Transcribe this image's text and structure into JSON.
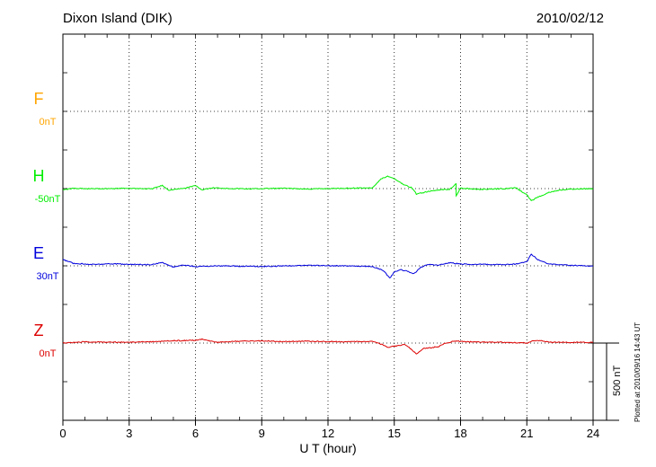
{
  "header": {
    "station": "Dixon Island (DIK)",
    "date": "2010/02/12",
    "plotted": "Plotted at 2010/09/16 14:43 UT"
  },
  "colors": {
    "F": "#ffa500",
    "H": "#00ee00",
    "E": "#0000dd",
    "Z": "#dd0000",
    "axis": "#000000"
  },
  "chart_data": {
    "type": "line",
    "xlabel": "U T (hour)",
    "xlim": [
      0,
      24
    ],
    "xticks": [
      0,
      3,
      6,
      9,
      12,
      15,
      18,
      21,
      24
    ],
    "scale_bar": "500 nT",
    "series": [
      {
        "name": "F",
        "baseline": "0nT",
        "points": []
      },
      {
        "name": "H",
        "baseline": "-50nT",
        "points": [
          [
            0,
            7
          ],
          [
            0.5,
            -2
          ],
          [
            1,
            1
          ],
          [
            2,
            0
          ],
          [
            3,
            -2
          ],
          [
            4,
            2
          ],
          [
            4.5,
            -20
          ],
          [
            4.8,
            10
          ],
          [
            5.5,
            -2
          ],
          [
            6,
            -20
          ],
          [
            6.3,
            8
          ],
          [
            6.8,
            -5
          ],
          [
            7.5,
            -1
          ],
          [
            8.5,
            2
          ],
          [
            9,
            0
          ],
          [
            10,
            -2
          ],
          [
            11,
            3
          ],
          [
            12,
            0
          ],
          [
            13,
            -3
          ],
          [
            14,
            -5
          ],
          [
            14.4,
            -62
          ],
          [
            14.7,
            -80
          ],
          [
            15,
            -65
          ],
          [
            15.4,
            -28
          ],
          [
            15.8,
            -5
          ],
          [
            16,
            35
          ],
          [
            16.5,
            20
          ],
          [
            17,
            8
          ],
          [
            17.5,
            4
          ],
          [
            17.8,
            -30
          ],
          [
            17.8,
            45
          ],
          [
            18,
            -2
          ],
          [
            19,
            5
          ],
          [
            20,
            0
          ],
          [
            20.5,
            -5
          ],
          [
            21,
            40
          ],
          [
            21.2,
            78
          ],
          [
            21.5,
            55
          ],
          [
            22,
            25
          ],
          [
            22.5,
            10
          ],
          [
            23,
            4
          ],
          [
            24,
            0
          ]
        ]
      },
      {
        "name": "E",
        "baseline": "30nT",
        "points": [
          [
            0,
            -40
          ],
          [
            0.5,
            -15
          ],
          [
            1,
            -12
          ],
          [
            1.5,
            -8
          ],
          [
            2,
            -14
          ],
          [
            3,
            -10
          ],
          [
            4,
            -8
          ],
          [
            4.5,
            -20
          ],
          [
            5,
            8
          ],
          [
            5.5,
            -5
          ],
          [
            6,
            5
          ],
          [
            7,
            0
          ],
          [
            8,
            2
          ],
          [
            9,
            4
          ],
          [
            10,
            1
          ],
          [
            11,
            -3
          ],
          [
            12,
            -1
          ],
          [
            13,
            1
          ],
          [
            14,
            4
          ],
          [
            14.5,
            30
          ],
          [
            14.8,
            80
          ],
          [
            15,
            40
          ],
          [
            15.3,
            25
          ],
          [
            15.6,
            35
          ],
          [
            15.9,
            50
          ],
          [
            16.2,
            10
          ],
          [
            16.5,
            -10
          ],
          [
            17,
            -5
          ],
          [
            17.5,
            -20
          ],
          [
            18,
            -12
          ],
          [
            18.5,
            -8
          ],
          [
            19,
            -10
          ],
          [
            20,
            -8
          ],
          [
            20.5,
            -12
          ],
          [
            21,
            -25
          ],
          [
            21.2,
            -75
          ],
          [
            21.5,
            -40
          ],
          [
            22,
            -12
          ],
          [
            22.5,
            -8
          ],
          [
            23,
            -3
          ],
          [
            24,
            2
          ]
        ]
      },
      {
        "name": "Z",
        "baseline": "0nT",
        "points": [
          [
            0,
            0
          ],
          [
            1,
            -8
          ],
          [
            2,
            -5
          ],
          [
            3,
            -6
          ],
          [
            4,
            -8
          ],
          [
            5,
            -15
          ],
          [
            6,
            -18
          ],
          [
            6.3,
            -25
          ],
          [
            6.7,
            -12
          ],
          [
            7,
            -5
          ],
          [
            8,
            -12
          ],
          [
            9,
            -14
          ],
          [
            10,
            -10
          ],
          [
            11,
            -12
          ],
          [
            12,
            -10
          ],
          [
            13,
            -8
          ],
          [
            14,
            -10
          ],
          [
            14.5,
            12
          ],
          [
            14.7,
            30
          ],
          [
            15,
            20
          ],
          [
            15.5,
            10
          ],
          [
            15.8,
            45
          ],
          [
            16,
            70
          ],
          [
            16.3,
            35
          ],
          [
            16.7,
            30
          ],
          [
            17,
            22
          ],
          [
            17.3,
            2
          ],
          [
            17.8,
            -15
          ],
          [
            18,
            -10
          ],
          [
            19,
            -6
          ],
          [
            20,
            -5
          ],
          [
            21,
            0
          ],
          [
            21.2,
            -12
          ],
          [
            21.5,
            -18
          ],
          [
            22,
            -6
          ],
          [
            23,
            -4
          ],
          [
            24,
            -5
          ]
        ]
      }
    ]
  }
}
